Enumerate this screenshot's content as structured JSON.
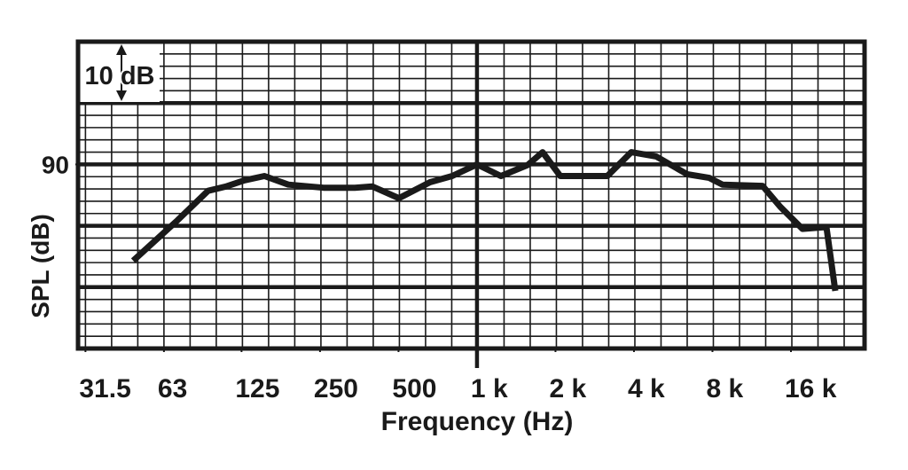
{
  "chart_data": {
    "type": "line",
    "x_label": "Frequency (Hz)",
    "y_label": "SPL (dB)",
    "annotation": "10 dB",
    "xscale": "log",
    "xlim": [
      29.5,
      30650
    ],
    "ylim": [
      60,
      110
    ],
    "xticks": [
      31.5,
      63,
      125,
      250,
      500,
      {
        "value": 1000,
        "label": "1 k"
      },
      {
        "value": 2000,
        "label": "2 k"
      },
      {
        "value": 4000,
        "label": "4 k"
      },
      {
        "value": 8000,
        "label": "8 k"
      },
      {
        "value": 16000,
        "label": "16 k"
      }
    ],
    "yticks": [
      90
    ],
    "xmajor": [
      1000
    ],
    "ymajor": [
      70,
      80,
      90,
      100
    ],
    "grid": true,
    "color": "#1a1a1a",
    "x": [
      48,
      71,
      93,
      109,
      128,
      153,
      189,
      258,
      340,
      397,
      502,
      660,
      803,
      1000,
      1235,
      1563,
      1785,
      2088,
      3162,
      3906,
      4863,
      6400,
      7782,
      8752,
      12450,
      14560,
      17710,
      21890,
      23670
    ],
    "values": [
      74.3,
      80.9,
      85.7,
      86.4,
      87.4,
      88.1,
      86.7,
      86.2,
      86.2,
      86.4,
      84.5,
      87.1,
      88.1,
      90,
      88.1,
      89.9,
      92.0,
      88.1,
      88.1,
      92.0,
      91.3,
      88.4,
      87.8,
      86.7,
      86.5,
      83.1,
      79.5,
      79.8,
      69.4
    ]
  }
}
